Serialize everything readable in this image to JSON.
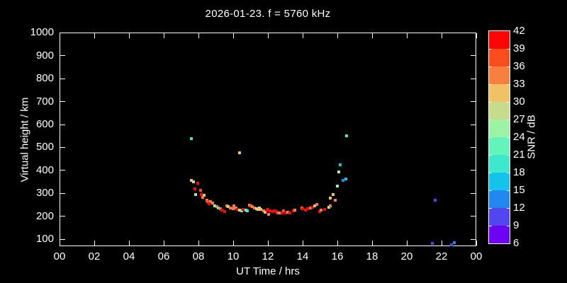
{
  "title": "2026-01-23. f = 5760 kHz",
  "chart_data": {
    "type": "scatter",
    "title": "2026-01-23. f = 5760 kHz",
    "xlabel": "UT Time / hrs",
    "ylabel": "Virtual height / km",
    "x_tick_labels": [
      "00",
      "02",
      "04",
      "06",
      "08",
      "10",
      "12",
      "14",
      "16",
      "18",
      "20",
      "22",
      "00"
    ],
    "x_tick_hours": [
      0,
      2,
      4,
      6,
      8,
      10,
      12,
      14,
      16,
      18,
      20,
      22,
      24
    ],
    "x_range_hours": [
      0,
      24
    ],
    "y_tick_km": [
      100,
      200,
      300,
      400,
      500,
      600,
      700,
      800,
      900,
      1000
    ],
    "ylim_km": [
      69,
      1000
    ],
    "grid": false,
    "background": "#000000",
    "foreground": "#ffffff",
    "colorbar": {
      "label": "SNR / dB",
      "levels_db": [
        6,
        9,
        12,
        15,
        18,
        21,
        24,
        27,
        30,
        33,
        36,
        39,
        42
      ],
      "colors_low_to_high": [
        "#6d03f2",
        "#5246f0",
        "#2387f0",
        "#13c3eb",
        "#3fe7cc",
        "#63f4bb",
        "#9df3a5",
        "#c6db8b",
        "#f1c166",
        "#f97f3e",
        "#fb4d1e",
        "#fb0505"
      ]
    },
    "points_columns": [
      "t_hours",
      "height_km",
      "snr_db"
    ],
    "points": [
      [
        7.58,
        356,
        31
      ],
      [
        7.7,
        350,
        28
      ],
      [
        7.95,
        344,
        41
      ],
      [
        7.78,
        319,
        41
      ],
      [
        8.11,
        313,
        37
      ],
      [
        7.82,
        294,
        28
      ],
      [
        8.15,
        294,
        41
      ],
      [
        8.31,
        291,
        31
      ],
      [
        8.23,
        282,
        34
      ],
      [
        8.48,
        270,
        34
      ],
      [
        8.52,
        264,
        37
      ],
      [
        8.68,
        264,
        34
      ],
      [
        8.8,
        257,
        34
      ],
      [
        8.6,
        254,
        41
      ],
      [
        8.92,
        245,
        25
      ],
      [
        9.05,
        242,
        34
      ],
      [
        9.13,
        236,
        19
      ],
      [
        9.25,
        233,
        34
      ],
      [
        9.33,
        227,
        41
      ],
      [
        9.49,
        220,
        41
      ],
      [
        9.62,
        245,
        34
      ],
      [
        9.7,
        242,
        31
      ],
      [
        9.82,
        236,
        34
      ],
      [
        9.98,
        233,
        34
      ],
      [
        10.03,
        245,
        34
      ],
      [
        10.15,
        236,
        34
      ],
      [
        10.23,
        230,
        41
      ],
      [
        10.35,
        227,
        28
      ],
      [
        10.47,
        223,
        22
      ],
      [
        10.59,
        230,
        41
      ],
      [
        10.72,
        227,
        22
      ],
      [
        10.8,
        223,
        19
      ],
      [
        10.92,
        248,
        34
      ],
      [
        11.0,
        245,
        37
      ],
      [
        11.12,
        242,
        34
      ],
      [
        11.21,
        236,
        34
      ],
      [
        11.33,
        233,
        28
      ],
      [
        11.41,
        230,
        31
      ],
      [
        11.53,
        236,
        28
      ],
      [
        11.61,
        230,
        31
      ],
      [
        11.74,
        223,
        34
      ],
      [
        11.82,
        217,
        31
      ],
      [
        11.94,
        227,
        41
      ],
      [
        12.02,
        230,
        41
      ],
      [
        12.06,
        208,
        34
      ],
      [
        12.14,
        223,
        41
      ],
      [
        12.27,
        220,
        41
      ],
      [
        12.35,
        223,
        41
      ],
      [
        12.47,
        220,
        41
      ],
      [
        12.59,
        214,
        37
      ],
      [
        12.67,
        214,
        34
      ],
      [
        12.8,
        214,
        41
      ],
      [
        12.88,
        223,
        37
      ],
      [
        13.0,
        214,
        41
      ],
      [
        13.16,
        217,
        34
      ],
      [
        13.28,
        214,
        41
      ],
      [
        13.45,
        223,
        41
      ],
      [
        13.57,
        227,
        34
      ],
      [
        13.94,
        236,
        34
      ],
      [
        14.02,
        233,
        41
      ],
      [
        14.18,
        227,
        41
      ],
      [
        14.3,
        233,
        41
      ],
      [
        14.43,
        236,
        34
      ],
      [
        14.59,
        239,
        41
      ],
      [
        14.71,
        245,
        31
      ],
      [
        14.83,
        251,
        34
      ],
      [
        14.96,
        220,
        41
      ],
      [
        15.08,
        227,
        34
      ],
      [
        15.28,
        230,
        41
      ],
      [
        15.53,
        239,
        25
      ],
      [
        15.61,
        245,
        34
      ],
      [
        15.61,
        279,
        31
      ],
      [
        15.77,
        294,
        31
      ],
      [
        15.89,
        270,
        34
      ],
      [
        16.01,
        331,
        25
      ],
      [
        16.09,
        393,
        25
      ],
      [
        16.18,
        424,
        16
      ],
      [
        16.34,
        356,
        13
      ],
      [
        16.5,
        362,
        16
      ],
      [
        16.54,
        551,
        19
      ],
      [
        7.58,
        538,
        19
      ],
      [
        10.35,
        477,
        31
      ],
      [
        21.64,
        270,
        10
      ],
      [
        21.47,
        81,
        10
      ],
      [
        22.57,
        75,
        10
      ],
      [
        22.74,
        84,
        13
      ]
    ]
  }
}
